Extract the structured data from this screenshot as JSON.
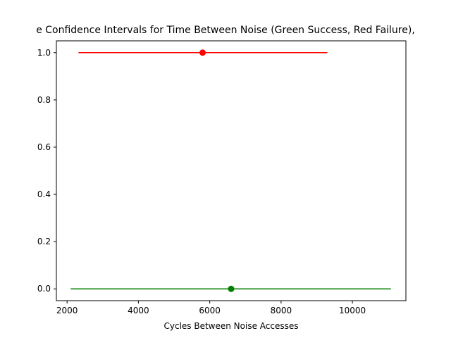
{
  "chart_data": {
    "type": "errorbar",
    "title": "e Confidence Intervals for Time Between Noise (Green Success, Red Failure),",
    "xlabel": "Cycles Between Noise Accesses",
    "ylabel": "",
    "xlim": [
      1700,
      11500
    ],
    "ylim": [
      -0.05,
      1.05
    ],
    "xticks": [
      2000,
      4000,
      6000,
      8000,
      10000
    ],
    "xtick_labels": [
      "2000",
      "4000",
      "6000",
      "8000",
      "10000"
    ],
    "yticks": [
      0.0,
      0.2,
      0.4,
      0.6,
      0.8,
      1.0
    ],
    "ytick_labels": [
      "0.0",
      "0.2",
      "0.4",
      "0.6",
      "0.8",
      "1.0"
    ],
    "grid": false,
    "series": [
      {
        "y": 1.0,
        "mean": 5800,
        "low": 2320,
        "high": 9300,
        "color": "#ff0000"
      },
      {
        "y": 0.0,
        "mean": 6600,
        "low": 2100,
        "high": 11080,
        "color": "#008000"
      }
    ]
  }
}
